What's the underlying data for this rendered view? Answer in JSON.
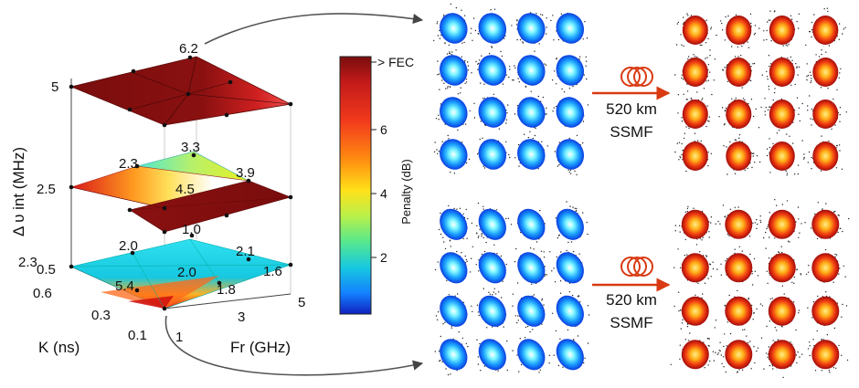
{
  "axes": {
    "z_label": "Δ υ int (MHz)",
    "z_ticks": [
      "5",
      "2.5",
      "0.5"
    ],
    "k_label": "K (ns)",
    "k_ticks": [
      "0.6",
      "0.3",
      "0.1"
    ],
    "fr_label": "Fr (GHz)",
    "fr_ticks": [
      "1",
      "3",
      "5"
    ]
  },
  "planes": [
    {
      "level": "5",
      "point_values": [
        "6.2"
      ]
    },
    {
      "level": "2.5",
      "point_values": [
        "2.3",
        "3.3",
        "3.9",
        "4.5",
        "1.0"
      ]
    },
    {
      "level": "0.5",
      "point_values": [
        "2.3",
        "2.0",
        "2.1",
        "5.4",
        "2.0",
        "1.6",
        "1.8"
      ]
    }
  ],
  "colorbar": {
    "label": "Penalty (dB)",
    "tick_labels": [
      "> FEC",
      "6",
      "4",
      "2"
    ],
    "colors": [
      "#7a0d0d",
      "#c41a1a",
      "#f23a1c",
      "#ff8c10",
      "#ffe21a",
      "#b8f04a",
      "#56e88e",
      "#16c8e0",
      "#1480ff",
      "#1020c0"
    ]
  },
  "fiber": {
    "top_length": "520 km",
    "top_type": "SSMF",
    "bottom_length": "520 km",
    "bottom_type": "SSMF"
  },
  "constellations": {
    "before_colors": [
      "#ffffff",
      "#7cf6ff",
      "#1aa0ff",
      "#0a3ce0"
    ],
    "after_colors": [
      "#ffee88",
      "#ffb018",
      "#f03a10",
      "#a00c0c"
    ]
  }
}
